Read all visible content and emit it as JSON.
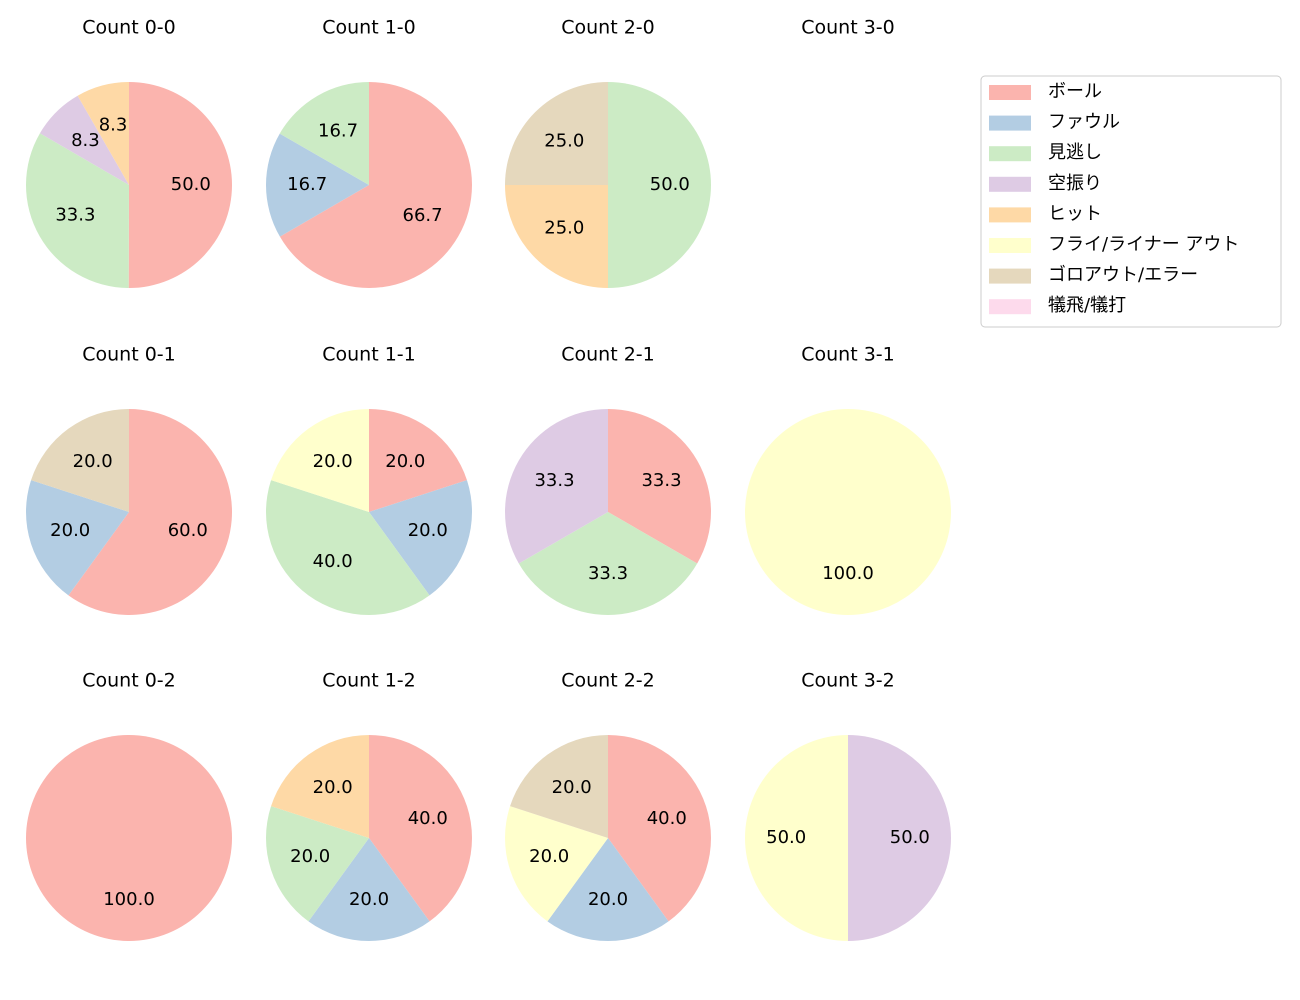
{
  "legend": {
    "categories": [
      "ボール",
      "ファウル",
      "見逃し",
      "空振り",
      "ヒット",
      "フライ/ライナー アウト",
      "ゴロアウト/エラー",
      "犠飛/犠打"
    ],
    "colors": [
      "#fbb4ae",
      "#b3cde3",
      "#ccebc5",
      "#decbe4",
      "#fed9a6",
      "#ffffcc",
      "#e5d8bd",
      "#fddaec"
    ],
    "position": "upper right"
  },
  "chart_data": [
    {
      "type": "pie",
      "title": "Count 0-0",
      "values": [
        50,
        null,
        33.3,
        8.3,
        8.3,
        null,
        null,
        null
      ],
      "value_labels": [
        "50.0",
        null,
        "33.3",
        "8.3",
        "8.3",
        null,
        null,
        null
      ]
    },
    {
      "type": "pie",
      "title": "Count 1-0",
      "values": [
        66.7,
        16.7,
        16.7,
        null,
        null,
        null,
        null,
        null
      ],
      "value_labels": [
        "66.7",
        "16.7",
        "16.7",
        null,
        null,
        null,
        null,
        null
      ]
    },
    {
      "type": "pie",
      "title": "Count 2-0",
      "values": [
        null,
        null,
        50,
        null,
        25,
        null,
        25,
        null
      ],
      "value_labels": [
        null,
        null,
        "50.0",
        null,
        "25.0",
        null,
        "25.0",
        null
      ]
    },
    {
      "type": "pie",
      "title": "Count 3-0",
      "values": [
        null,
        null,
        null,
        null,
        null,
        null,
        null,
        null
      ],
      "value_labels": [
        null,
        null,
        null,
        null,
        null,
        null,
        null,
        null
      ]
    },
    {
      "type": "pie",
      "title": "Count 0-1",
      "values": [
        60,
        20,
        null,
        null,
        null,
        null,
        20,
        null
      ],
      "value_labels": [
        "60.0",
        "20.0",
        null,
        null,
        null,
        null,
        "20.0",
        null
      ]
    },
    {
      "type": "pie",
      "title": "Count 1-1",
      "values": [
        20,
        20,
        40,
        null,
        null,
        20,
        null,
        null
      ],
      "value_labels": [
        "20.0",
        "20.0",
        "40.0",
        null,
        null,
        "20.0",
        null,
        null
      ]
    },
    {
      "type": "pie",
      "title": "Count 2-1",
      "values": [
        33.3,
        null,
        33.3,
        33.3,
        null,
        null,
        null,
        null
      ],
      "value_labels": [
        "33.3",
        null,
        "33.3",
        "33.3",
        null,
        null,
        null,
        null
      ]
    },
    {
      "type": "pie",
      "title": "Count 3-1",
      "values": [
        null,
        null,
        null,
        null,
        null,
        100,
        null,
        null
      ],
      "value_labels": [
        null,
        null,
        null,
        null,
        null,
        "100.0",
        null,
        null
      ]
    },
    {
      "type": "pie",
      "title": "Count 0-2",
      "values": [
        100,
        null,
        null,
        null,
        null,
        null,
        null,
        null
      ],
      "value_labels": [
        "100.0",
        null,
        null,
        null,
        null,
        null,
        null,
        null
      ]
    },
    {
      "type": "pie",
      "title": "Count 1-2",
      "values": [
        40,
        20,
        20,
        null,
        20,
        null,
        null,
        null
      ],
      "value_labels": [
        "40.0",
        "20.0",
        "20.0",
        null,
        "20.0",
        null,
        null,
        null
      ]
    },
    {
      "type": "pie",
      "title": "Count 2-2",
      "values": [
        40,
        20,
        null,
        null,
        null,
        20,
        20,
        null
      ],
      "value_labels": [
        "40.0",
        "20.0",
        null,
        null,
        null,
        "20.0",
        "20.0",
        null
      ]
    },
    {
      "type": "pie",
      "title": "Count 3-2",
      "values": [
        null,
        null,
        null,
        50,
        null,
        50,
        null,
        null
      ],
      "value_labels": [
        null,
        null,
        null,
        "50.0",
        null,
        "50.0",
        null,
        null
      ]
    }
  ]
}
